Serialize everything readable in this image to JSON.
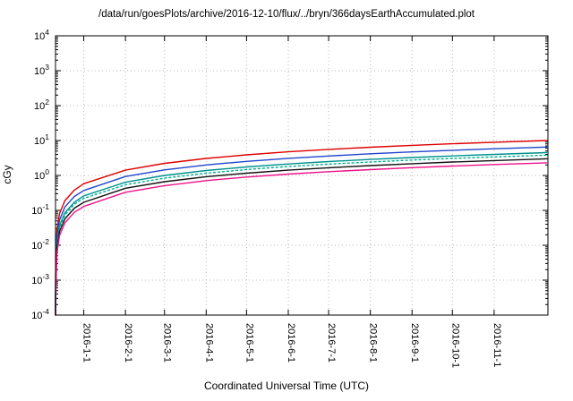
{
  "title": "/data/run/goesPlots/archive/2016-12-10/flux/../bryn/366daysEarthAccumulated.plot",
  "chart_data": {
    "type": "line",
    "title": "/data/run/goesPlots/archive/2016-12-10/flux/../bryn/366daysEarthAccumulated.plot",
    "xlabel": "Coordinated Universal Time (UTC)",
    "ylabel": "cGy",
    "y_scale": "log",
    "ylim": [
      0.0001,
      10000
    ],
    "grid": "dotted",
    "legend": "none",
    "x_days_total": 366,
    "x_ticks": [
      {
        "label": "2016-1-1",
        "day": 21
      },
      {
        "label": "2016-2-1",
        "day": 52
      },
      {
        "label": "2016-3-1",
        "day": 81
      },
      {
        "label": "2016-4-1",
        "day": 112
      },
      {
        "label": "2016-5-1",
        "day": 142
      },
      {
        "label": "2016-6-1",
        "day": 173
      },
      {
        "label": "2016-7-1",
        "day": 203
      },
      {
        "label": "2016-8-1",
        "day": 234
      },
      {
        "label": "2016-9-1",
        "day": 265
      },
      {
        "label": "2016-10-1",
        "day": 295
      },
      {
        "label": "2016-11-1",
        "day": 326
      }
    ],
    "x_days": [
      0.004,
      0.05,
      1,
      3,
      7,
      14,
      21,
      52,
      81,
      112,
      142,
      173,
      203,
      234,
      265,
      295,
      326,
      365
    ],
    "series": [
      {
        "name": "series-red",
        "color": "#dd0000",
        "dash": "",
        "values": [
          0.00011,
          0.0014,
          0.027,
          0.082,
          0.19,
          0.38,
          0.58,
          1.42,
          2.22,
          3.07,
          3.89,
          4.74,
          5.56,
          6.41,
          7.26,
          8.08,
          8.93,
          10.0
        ]
      },
      {
        "name": "series-blue",
        "color": "#2244cc",
        "dash": "",
        "values": [
          7e-05,
          0.0009,
          0.018,
          0.053,
          0.125,
          0.25,
          0.37,
          0.93,
          1.44,
          1.99,
          2.53,
          3.08,
          3.61,
          4.17,
          4.72,
          5.25,
          5.8,
          6.5
        ]
      },
      {
        "name": "series-teal",
        "color": "#009090",
        "dash": "",
        "values": [
          5e-05,
          0.0006,
          0.012,
          0.037,
          0.086,
          0.17,
          0.26,
          0.64,
          1.0,
          1.38,
          1.75,
          2.13,
          2.5,
          2.88,
          3.26,
          3.63,
          4.01,
          4.5
        ]
      },
      {
        "name": "series-teal-dotted",
        "color": "#00b090",
        "dash": "2 3",
        "values": [
          4e-05,
          0.0005,
          0.01,
          0.031,
          0.073,
          0.15,
          0.22,
          0.54,
          0.84,
          1.16,
          1.48,
          1.8,
          2.11,
          2.43,
          2.76,
          3.07,
          3.39,
          3.8
        ]
      },
      {
        "name": "series-black",
        "color": "#111111",
        "dash": "",
        "values": [
          3e-05,
          0.0004,
          0.008,
          0.025,
          0.057,
          0.115,
          0.17,
          0.43,
          0.66,
          0.92,
          1.16,
          1.42,
          1.66,
          1.92,
          2.17,
          2.42,
          2.67,
          3.0
        ]
      },
      {
        "name": "series-magenta",
        "color": "#ee1289",
        "dash": "",
        "values": [
          2.5e-05,
          0.0003,
          0.006,
          0.019,
          0.044,
          0.088,
          0.13,
          0.33,
          0.51,
          0.71,
          0.9,
          1.09,
          1.28,
          1.47,
          1.67,
          1.86,
          2.05,
          2.3
        ]
      }
    ]
  }
}
